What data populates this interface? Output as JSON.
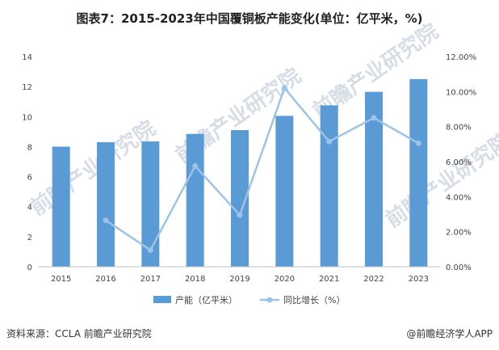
{
  "title": "图表7：2015-2023年中国覆铜板产能变化(单位：亿平米，%)",
  "source": "资料来源：CCLA 前瞻产业研究院",
  "credit": "@前瞻经济学人APP",
  "watermark": "前瞻产业研究院",
  "colors": {
    "bar": "#5b9bd5",
    "line": "#9dc3e6",
    "axis": "#bfbfbf"
  },
  "chart_data": {
    "type": "bar",
    "categories": [
      "2015",
      "2016",
      "2017",
      "2018",
      "2019",
      "2020",
      "2021",
      "2022",
      "2023"
    ],
    "series": [
      {
        "name": "产能（亿平米）",
        "type": "bar",
        "axis": "left",
        "values": [
          8.0,
          8.3,
          8.35,
          8.85,
          9.1,
          10.05,
          10.75,
          11.65,
          12.5
        ]
      },
      {
        "name": "同比增长（%）",
        "type": "line",
        "axis": "right",
        "values": [
          null,
          2.65,
          0.95,
          5.75,
          2.95,
          10.2,
          7.15,
          8.5,
          7.05
        ]
      }
    ],
    "y_left": {
      "min": 0,
      "max": 14,
      "ticks": [
        "0",
        "2",
        "4",
        "6",
        "8",
        "10",
        "12",
        "14"
      ]
    },
    "y_right": {
      "min": 0,
      "max": 12,
      "ticks": [
        "0.00%",
        "2.00%",
        "4.00%",
        "6.00%",
        "8.00%",
        "10.00%",
        "12.00%"
      ]
    },
    "grid": false,
    "legend": "bottom-center"
  }
}
